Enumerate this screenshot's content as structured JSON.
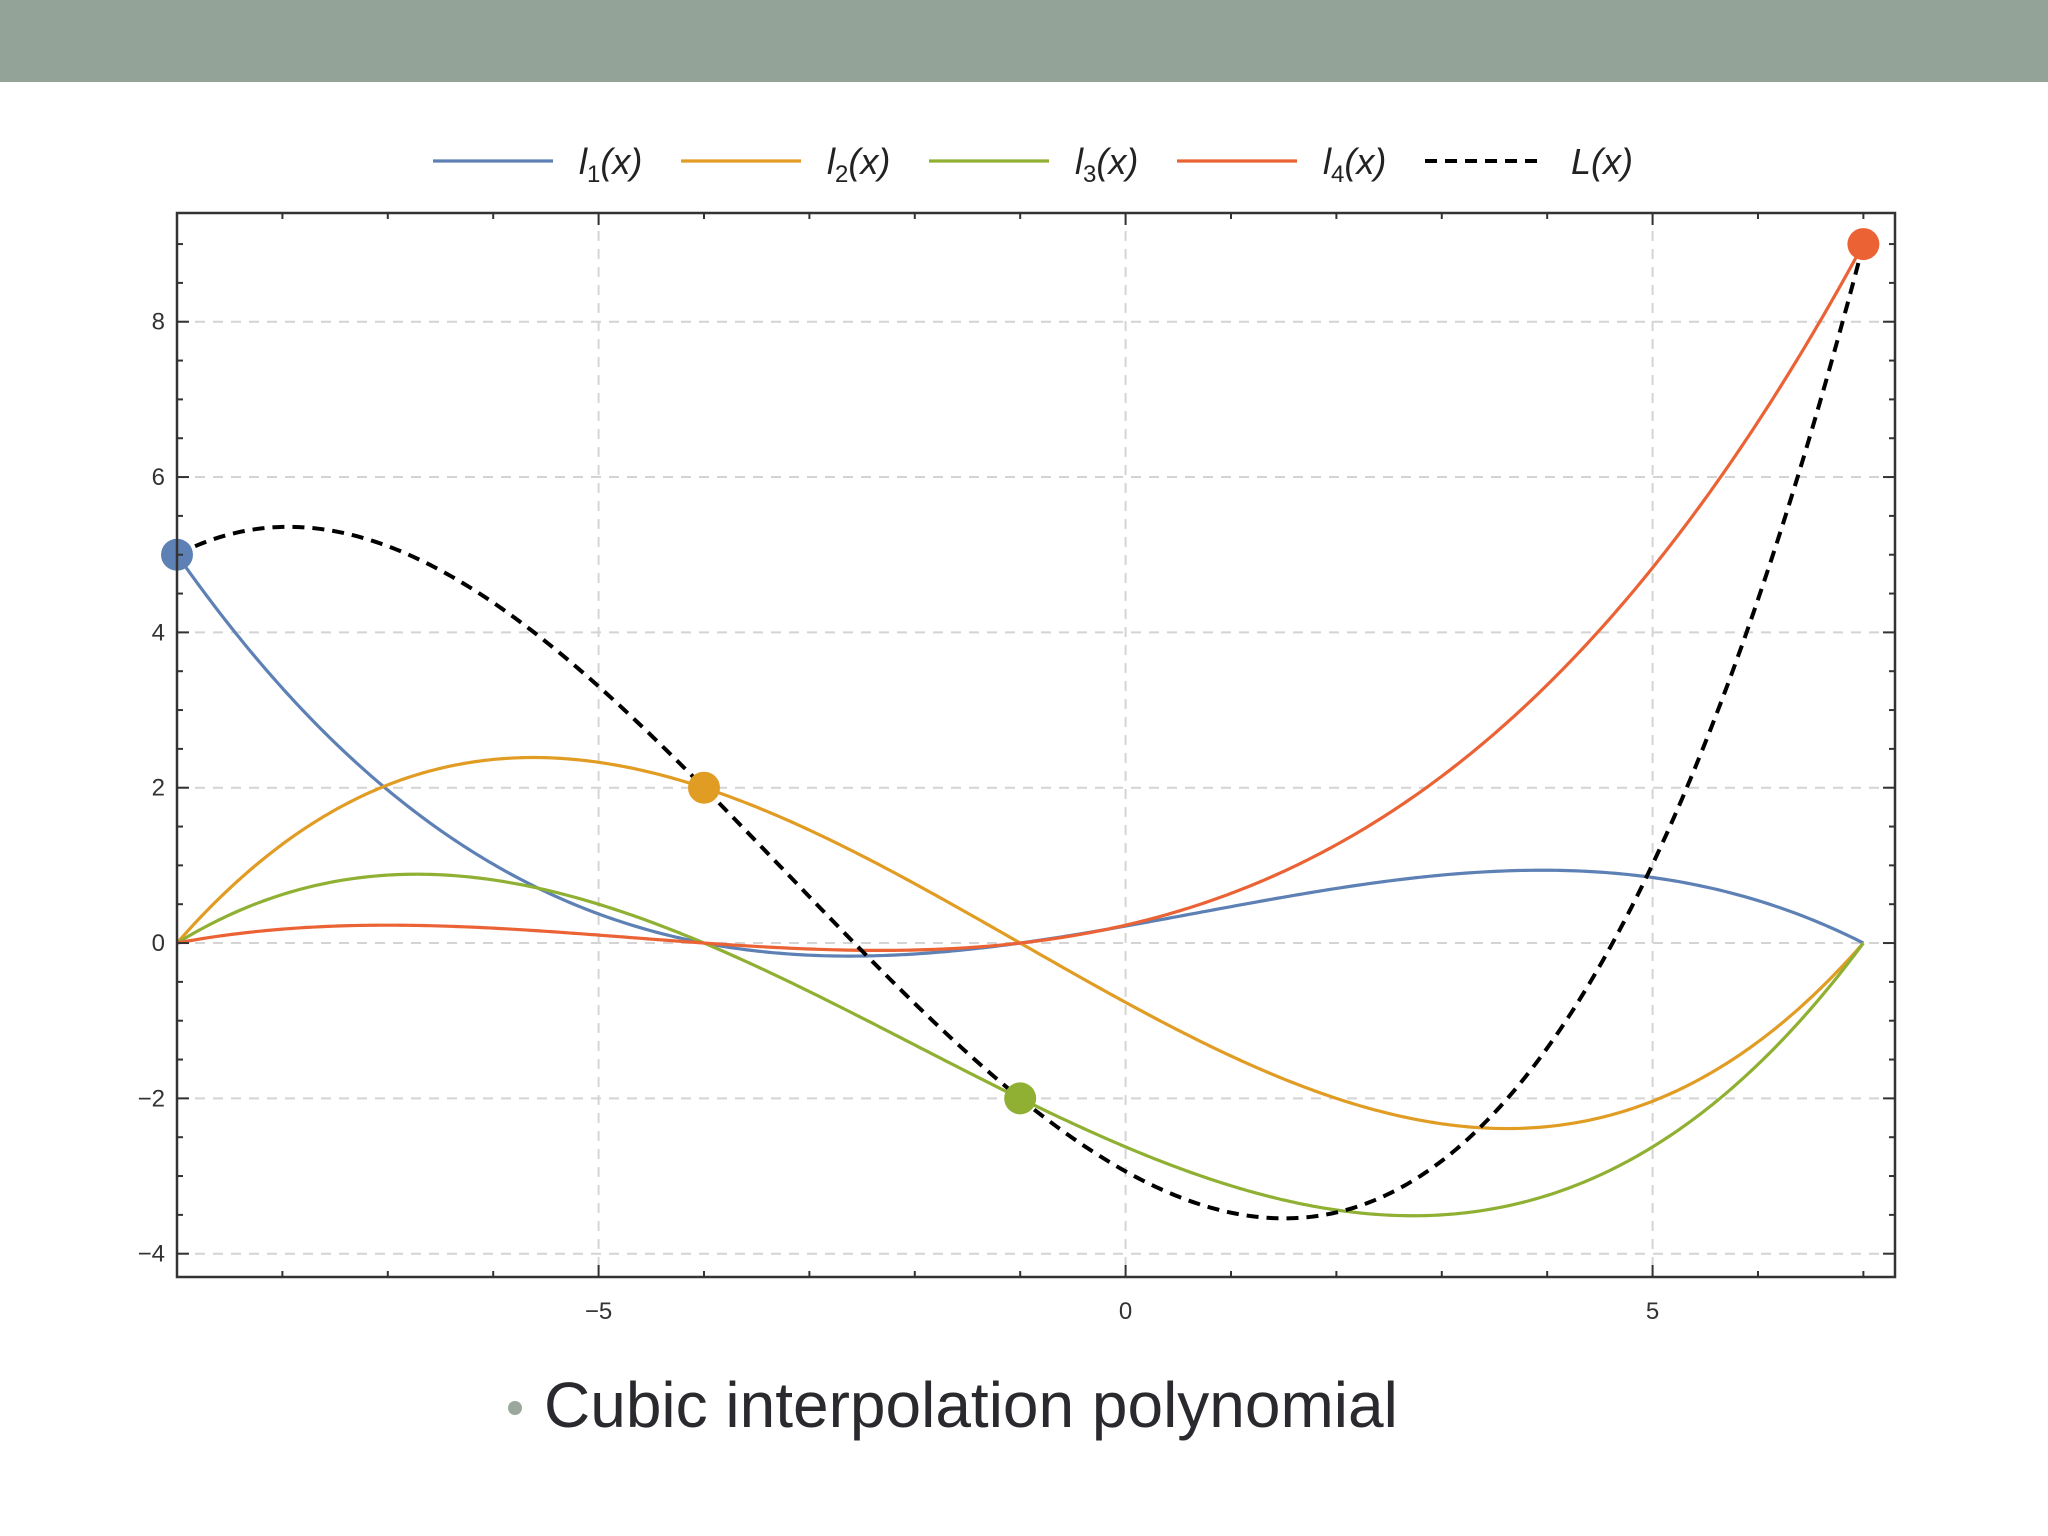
{
  "caption": {
    "bullet": "•",
    "text": "Cubic interpolation polynomial"
  },
  "colors": {
    "header": "#93a397",
    "l1": "#5e81b5",
    "l2": "#e19c24",
    "l3": "#8fb032",
    "l4": "#eb6235",
    "L": "#000000"
  },
  "chart_data": {
    "type": "line",
    "title": "",
    "xlabel": "",
    "ylabel": "",
    "xlim": [
      -9,
      7.3
    ],
    "ylim": [
      -4.3,
      9.4
    ],
    "xticks": [
      -5,
      0,
      5
    ],
    "xtick_labels": [
      "−5",
      "0",
      "5"
    ],
    "yticks": [
      -4,
      -2,
      0,
      2,
      4,
      6,
      8
    ],
    "ytick_labels": [
      "−4",
      "−2",
      "0",
      "2",
      "4",
      "6",
      "8"
    ],
    "grid": true,
    "grid_style": "dashed",
    "legend_position": "top",
    "nodes": [
      {
        "x": -9,
        "y": 5,
        "color": "#5e81b5"
      },
      {
        "x": -4,
        "y": 2,
        "color": "#e19c24"
      },
      {
        "x": -1,
        "y": -2,
        "color": "#8fb032"
      },
      {
        "x": 7,
        "y": 9,
        "color": "#eb6235"
      }
    ],
    "series": [
      {
        "name": "l1(x)",
        "base": "l",
        "sub": "1",
        "color": "#5e81b5",
        "dash": false,
        "node_index": 0
      },
      {
        "name": "l2(x)",
        "base": "l",
        "sub": "2",
        "color": "#e19c24",
        "dash": false,
        "node_index": 1
      },
      {
        "name": "l3(x)",
        "base": "l",
        "sub": "3",
        "color": "#8fb032",
        "dash": false,
        "node_index": 2
      },
      {
        "name": "l4(x)",
        "base": "l",
        "sub": "4",
        "color": "#eb6235",
        "dash": false,
        "node_index": 3
      },
      {
        "name": "L(x)",
        "base": "L",
        "sub": "",
        "color": "#000000",
        "dash": true,
        "node_index": -1
      }
    ]
  }
}
